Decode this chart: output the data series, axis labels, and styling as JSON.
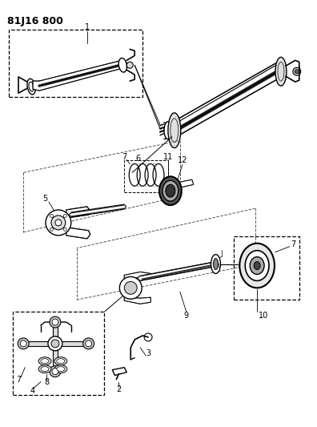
{
  "title": "81J16 800",
  "bg_color": "#ffffff",
  "fig_width": 3.96,
  "fig_height": 5.33,
  "dpi": 100,
  "shaft_color": "#1a1a1a",
  "gray_light": "#cccccc",
  "gray_mid": "#888888",
  "line_color": "#000000"
}
